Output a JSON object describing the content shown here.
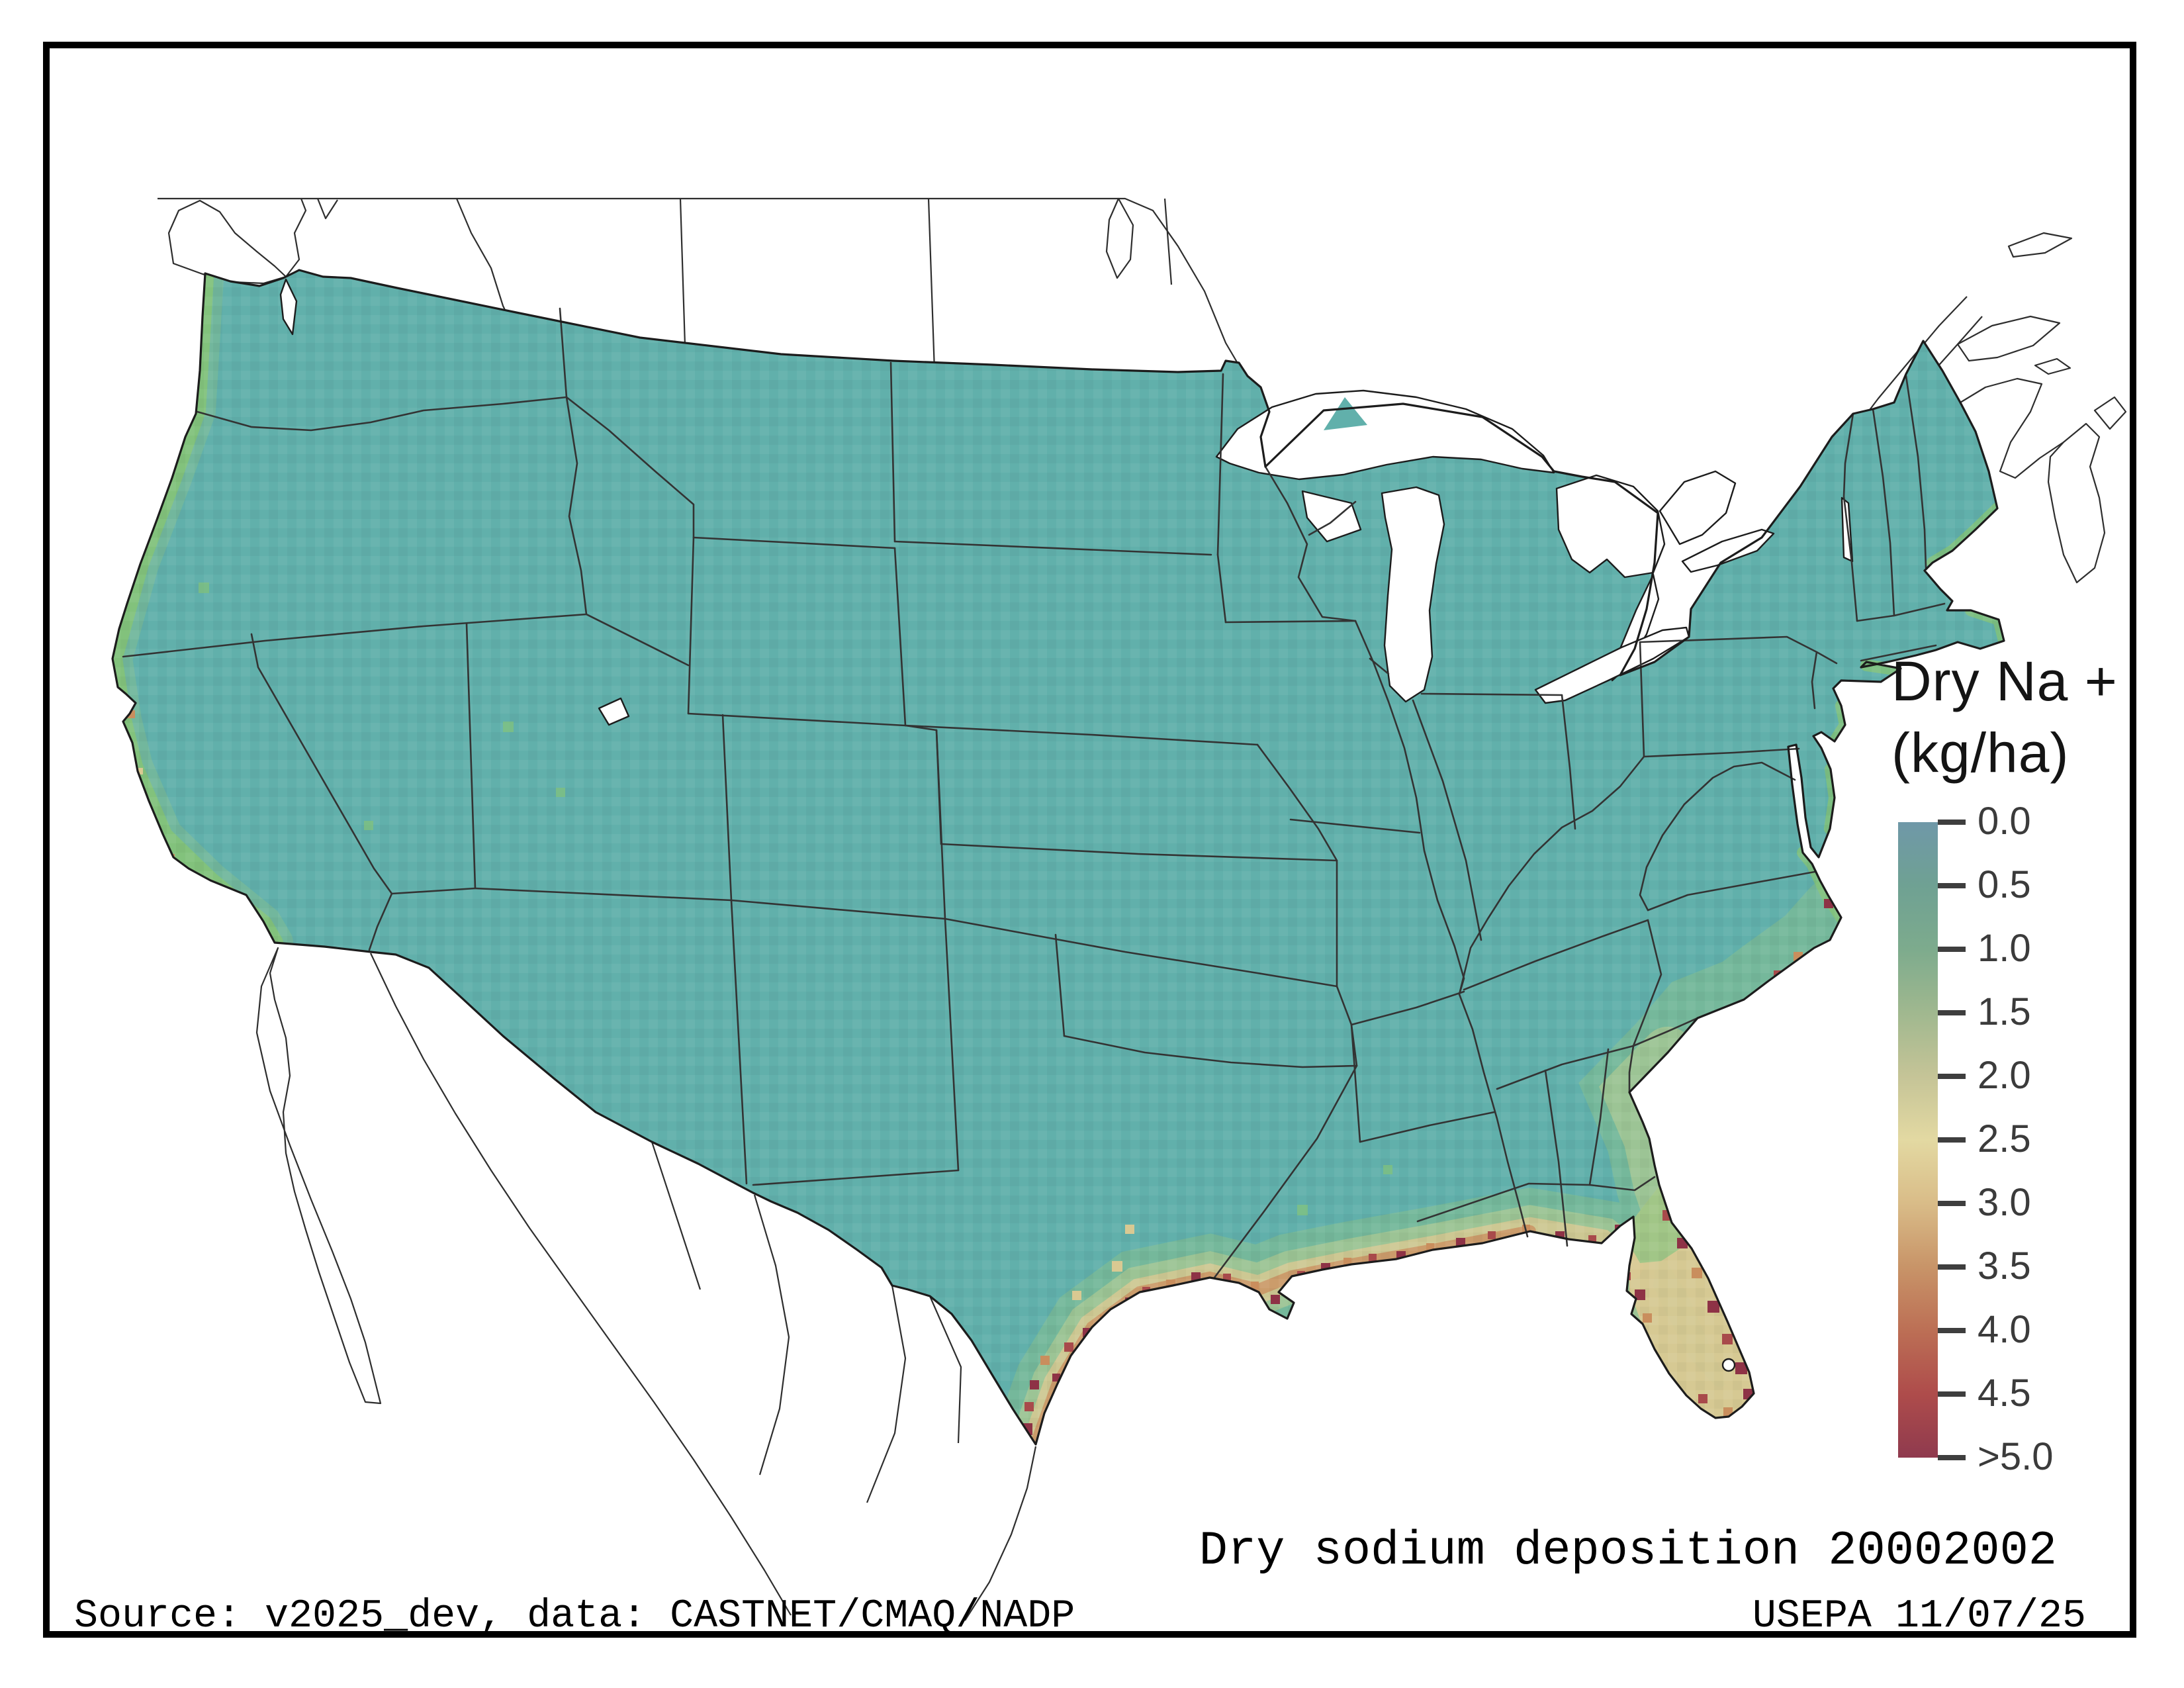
{
  "legend": {
    "title_line1": "Dry Na +",
    "title_line2": "(kg/ha)",
    "tick_labels": [
      "0.0",
      "0.5",
      "1.0",
      "1.5",
      "2.0",
      "2.5",
      "3.0",
      "3.5",
      "4.0",
      "4.5",
      ">5.0"
    ],
    "colorbar_stops": [
      "#6f98a8",
      "#6fa193",
      "#7dab8d",
      "#a0b88f",
      "#c5c497",
      "#e3d9a2",
      "#d9bc88",
      "#c89468",
      "#bc6f55",
      "#ae4c4b",
      "#8f3a4e"
    ],
    "tick_color": "#3e3e3e",
    "label_color": "#3b3b3b"
  },
  "captions": {
    "map_title": "Dry sodium deposition 20002002",
    "agency_date": "USEPA 11/07/25",
    "source": "Source: v2025_dev, data: CASTNET/CMAQ/NADP"
  },
  "map": {
    "land_color": "#61b0ab",
    "state_border_color": "#333333",
    "coast_outline_color": "#1c1c1c",
    "neighbor_line_color": "#2e2e2e",
    "deposition_palette": {
      "green": "#86c474",
      "green2": "#93c584",
      "yellow_green": "#bcce90",
      "tan": "#d9c992",
      "orange": "#c98e5d",
      "red": "#a84a4b",
      "dark_red": "#8e3246"
    }
  },
  "chart_data": {
    "type": "heatmap",
    "title": "Dry sodium deposition 20002002",
    "legend_title": "Dry Na + (kg/ha)",
    "units": "kg/ha",
    "scale_ticks": [
      0.0,
      0.5,
      1.0,
      1.5,
      2.0,
      2.5,
      3.0,
      3.5,
      4.0,
      4.5,
      5.0
    ],
    "scale_range": [
      0,
      5
    ],
    "scale_top_label_is_open_ended": true,
    "dominant_interior_value_range": [
      0.0,
      0.5
    ],
    "elevated_value_regions": [
      "Pacific coast strip",
      "Gulf of Mexico coast",
      "south Texas coast",
      "Florida peninsula",
      "Atlantic coast (Carolinas to Maine)"
    ],
    "hotspot_value": ">5.0"
  }
}
